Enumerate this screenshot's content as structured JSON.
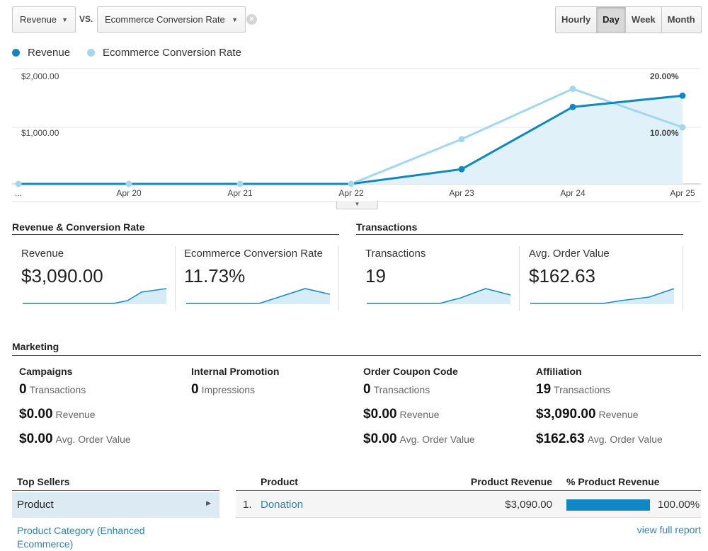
{
  "controls": {
    "metric1": "Revenue",
    "vs": "VS.",
    "metric2": "Ecommerce Conversion Rate",
    "clear_icon": "x-circle-icon",
    "granularity": [
      "Hourly",
      "Day",
      "Week",
      "Month"
    ],
    "active_granularity": "Day"
  },
  "legend": {
    "series1": "Revenue",
    "series2": "Ecommerce Conversion Rate",
    "color1": "#0d87c5",
    "color2": "#9fd8ef"
  },
  "chart_data": {
    "type": "line",
    "x": [
      "...",
      "Apr 20",
      "Apr 21",
      "Apr 22",
      "Apr 23",
      "Apr 24",
      "Apr 25"
    ],
    "series": [
      {
        "name": "Revenue",
        "axis": "left",
        "values": [
          0,
          0,
          0,
          0,
          260,
          1360,
          1560
        ]
      },
      {
        "name": "Ecommerce Conversion Rate",
        "axis": "right",
        "values": [
          0,
          0,
          0,
          0,
          7.9,
          16.8,
          10.0
        ]
      }
    ],
    "y_left_ticks": [
      "$2,000.00",
      "$1,000.00"
    ],
    "y_right_ticks": [
      "20.00%",
      "10.00%"
    ],
    "ylim_left": [
      0,
      2000
    ],
    "ylim_right": [
      0,
      20
    ]
  },
  "summary": {
    "group1_title": "Revenue & Conversion Rate",
    "group2_title": "Transactions",
    "metrics": [
      {
        "label": "Revenue",
        "value": "$3,090.00"
      },
      {
        "label": "Ecommerce Conversion Rate",
        "value": "11.73%"
      },
      {
        "label": "Transactions",
        "value": "19"
      },
      {
        "label": "Avg. Order Value",
        "value": "$162.63"
      }
    ]
  },
  "marketing": {
    "title": "Marketing",
    "columns": [
      {
        "head": "Campaigns",
        "r1v": "0",
        "r1l": "Transactions",
        "r2v": "$0.00",
        "r2l": "Revenue",
        "r3v": "$0.00",
        "r3l": "Avg. Order Value"
      },
      {
        "head": "Internal Promotion",
        "r1v": "0",
        "r1l": "Impressions"
      },
      {
        "head": "Order Coupon Code",
        "r1v": "0",
        "r1l": "Transactions",
        "r2v": "$0.00",
        "r2l": "Revenue",
        "r3v": "$0.00",
        "r3l": "Avg. Order Value"
      },
      {
        "head": "Affiliation",
        "r1v": "19",
        "r1l": "Transactions",
        "r2v": "$3,090.00",
        "r2l": "Revenue",
        "r3v": "$162.63",
        "r3l": "Avg. Order Value"
      }
    ]
  },
  "top_sellers": {
    "title": "Top Sellers",
    "selected": "Product",
    "link2": "Product Category (Enhanced Ecommerce)",
    "table_headers": [
      "Product",
      "Product Revenue",
      "% Product Revenue"
    ],
    "rows": [
      {
        "num": "1.",
        "product": "Donation",
        "revenue": "$3,090.00",
        "pct": "100.00%",
        "pct_value": 100
      }
    ],
    "view_full": "view full report"
  }
}
